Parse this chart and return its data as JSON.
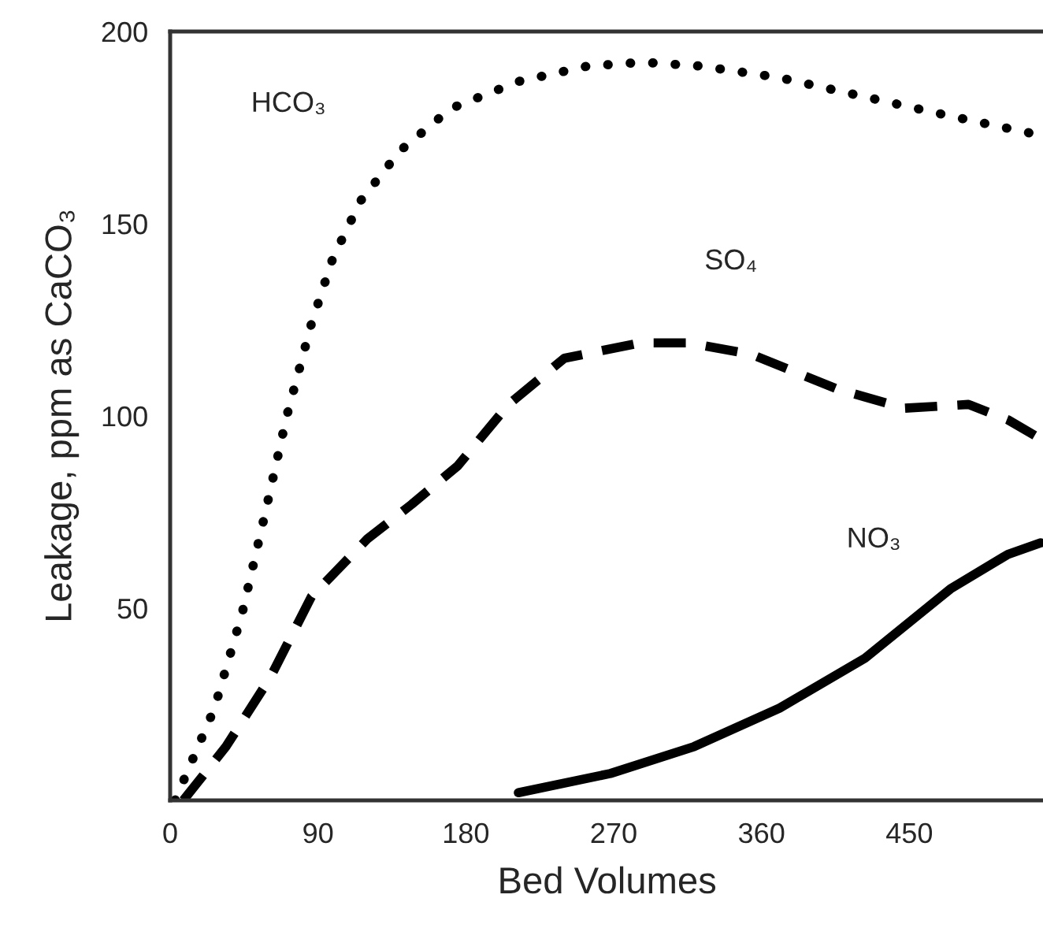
{
  "chart_data": {
    "type": "line",
    "xlabel": "Bed Volumes",
    "ylabel": "Leakage, ppm as CaCO₃",
    "xlim": [
      0,
      532
    ],
    "ylim": [
      0,
      200
    ],
    "xticks": [
      0,
      90,
      180,
      270,
      360,
      450
    ],
    "yticks": [
      50,
      100,
      150,
      200
    ],
    "grid": false,
    "marker": "none",
    "series": [
      {
        "name": "HCO₃",
        "color": "#000000",
        "line_style": "dotted",
        "x": [
          3,
          6,
          27,
          44,
          58,
          71,
          86,
          99,
          116,
          140,
          171,
          212,
          254,
          288,
          323,
          371,
          423,
          475,
          530
        ],
        "values": [
          0,
          3,
          24,
          49,
          75,
          100,
          124,
          141,
          156,
          169,
          180,
          187,
          191,
          192,
          191,
          188,
          183,
          178,
          173
        ]
      },
      {
        "name": "SO₄",
        "color": "#000000",
        "line_style": "dashed",
        "x": [
          8,
          34,
          61,
          86,
          120,
          147,
          175,
          206,
          240,
          286,
          316,
          354,
          406,
          447,
          486,
          510,
          530
        ],
        "values": [
          0,
          14,
          32,
          53,
          68,
          77,
          87,
          103,
          115,
          119,
          119,
          116,
          107,
          102,
          103,
          99,
          94
        ]
      },
      {
        "name": "NO₃",
        "color": "#000000",
        "line_style": "solid",
        "x": [
          212,
          268,
          319,
          371,
          423,
          475,
          510,
          530
        ],
        "values": [
          2,
          7,
          14,
          24,
          37,
          55,
          64,
          67
        ]
      }
    ]
  }
}
